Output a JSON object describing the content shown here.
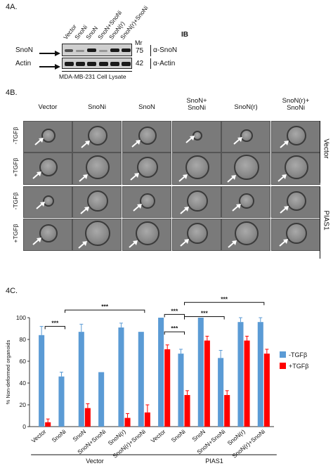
{
  "panel_a": {
    "label": "4A.",
    "lanes": [
      "Vector",
      "SnoNi",
      "SnoN",
      "SnoN+SnoNi",
      "SnoN(r)",
      "SnoN(r)+SnoNi"
    ],
    "ib_header": "IB",
    "mr_header": "Mr",
    "rows": [
      {
        "left": "SnoN",
        "mr": "75",
        "ab": "α-SnoN"
      },
      {
        "left": "Actin",
        "mr": "42",
        "ab": "α-Actin"
      }
    ],
    "cell_line": "MDA-MB-231 Cell Lysate"
  },
  "panel_b": {
    "label": "4B.",
    "columns": [
      "Vector",
      "SnoNi",
      "SnoN",
      "SnoN+\nSnoNi",
      "SnoN(r)",
      "SnoN(r)+\nSnoNi"
    ],
    "row_labels": [
      "-TGFβ",
      "+TGFβ",
      "-TGFβ",
      "+TGFβ"
    ],
    "group_labels": [
      "Vector",
      "PIAS1"
    ]
  },
  "panel_c": {
    "label": "4C."
  },
  "chart_data": {
    "type": "bar",
    "ylabel": "% Non-deformed organoids",
    "ylim": [
      0,
      100
    ],
    "yticks": [
      0,
      20,
      40,
      60,
      80,
      100
    ],
    "categories": [
      "Vector",
      "SnoNi",
      "SnoN",
      "SnoN+SnoNi",
      "SnoN(r)",
      "SnoN(r)+SnoNi",
      "Vector",
      "SnoNi",
      "SnoN",
      "SnoN+SnoNi",
      "SnoN(r)",
      "SnoN(r)+SnoNi"
    ],
    "groups": [
      "Vector",
      "PIAS1"
    ],
    "series": [
      {
        "name": "-TGFβ",
        "color": "#5b9bd5",
        "values": [
          84,
          46,
          87,
          50,
          91,
          87,
          100,
          67,
          100,
          63,
          96,
          96
        ],
        "errors": [
          8,
          4,
          7,
          0,
          4,
          0,
          0,
          4,
          0,
          7,
          4,
          4
        ]
      },
      {
        "name": "+TGFβ",
        "color": "#ff0000",
        "values": [
          4,
          0,
          17,
          0,
          8,
          13,
          71,
          29,
          79,
          29,
          79,
          67
        ],
        "errors": [
          3,
          0,
          4,
          0,
          4,
          7,
          4,
          4,
          4,
          4,
          4,
          4
        ]
      }
    ],
    "significance": "***",
    "legend_position": "right"
  }
}
